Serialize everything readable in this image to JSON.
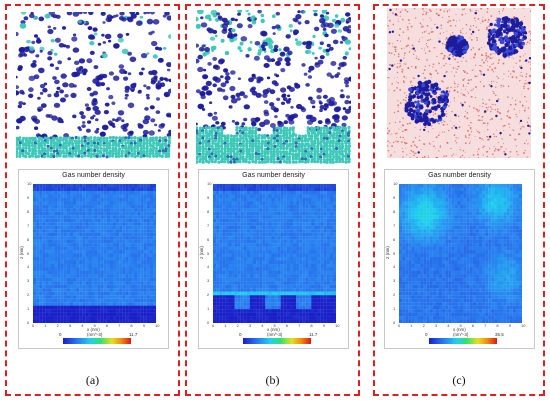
{
  "panels": [
    {
      "caption": "(a)",
      "plot_title": "Gas number density",
      "xlabel": "x (nm)",
      "ylabel": "z (nm)",
      "colorbar_unit": "(nm^-3)",
      "colorbar_min": "0",
      "colorbar_max": "11.7",
      "x_ticks": [
        "0",
        "1",
        "2",
        "3",
        "4",
        "5",
        "6",
        "7",
        "8",
        "9",
        "10"
      ],
      "y_ticks": [
        "0",
        "1",
        "2",
        "3",
        "4",
        "5",
        "6",
        "7",
        "8",
        "9",
        "10"
      ]
    },
    {
      "caption": "(b)",
      "plot_title": "Gas number density",
      "xlabel": "x (nm)",
      "ylabel": "z (nm)",
      "colorbar_unit": "(nm^-3)",
      "colorbar_min": "0",
      "colorbar_max": "11.7",
      "x_ticks": [
        "0",
        "1",
        "2",
        "3",
        "4",
        "5",
        "6",
        "7",
        "8",
        "9",
        "10"
      ],
      "y_ticks": [
        "0",
        "1",
        "2",
        "3",
        "4",
        "5",
        "6",
        "7",
        "8",
        "9",
        "10"
      ]
    },
    {
      "caption": "(c)",
      "plot_title": "Gas number density",
      "xlabel": "x (nm)",
      "ylabel": "z (nm)",
      "colorbar_unit": "(nm^-3)",
      "colorbar_min": "0",
      "colorbar_max": "35.5",
      "x_ticks": [
        "0",
        "1",
        "2",
        "3",
        "4",
        "5",
        "6",
        "7",
        "8",
        "9",
        "10"
      ],
      "y_ticks": [
        "0",
        "1",
        "2",
        "3",
        "4",
        "5",
        "6",
        "7",
        "8",
        "9",
        "10"
      ]
    }
  ],
  "colors": {
    "border": "#e02020",
    "gas_molecule": "#1c1c9c",
    "wall_atom": "#3ec8b8",
    "water_point": "#e05050",
    "density_low": "#1a3ad8"
  }
}
